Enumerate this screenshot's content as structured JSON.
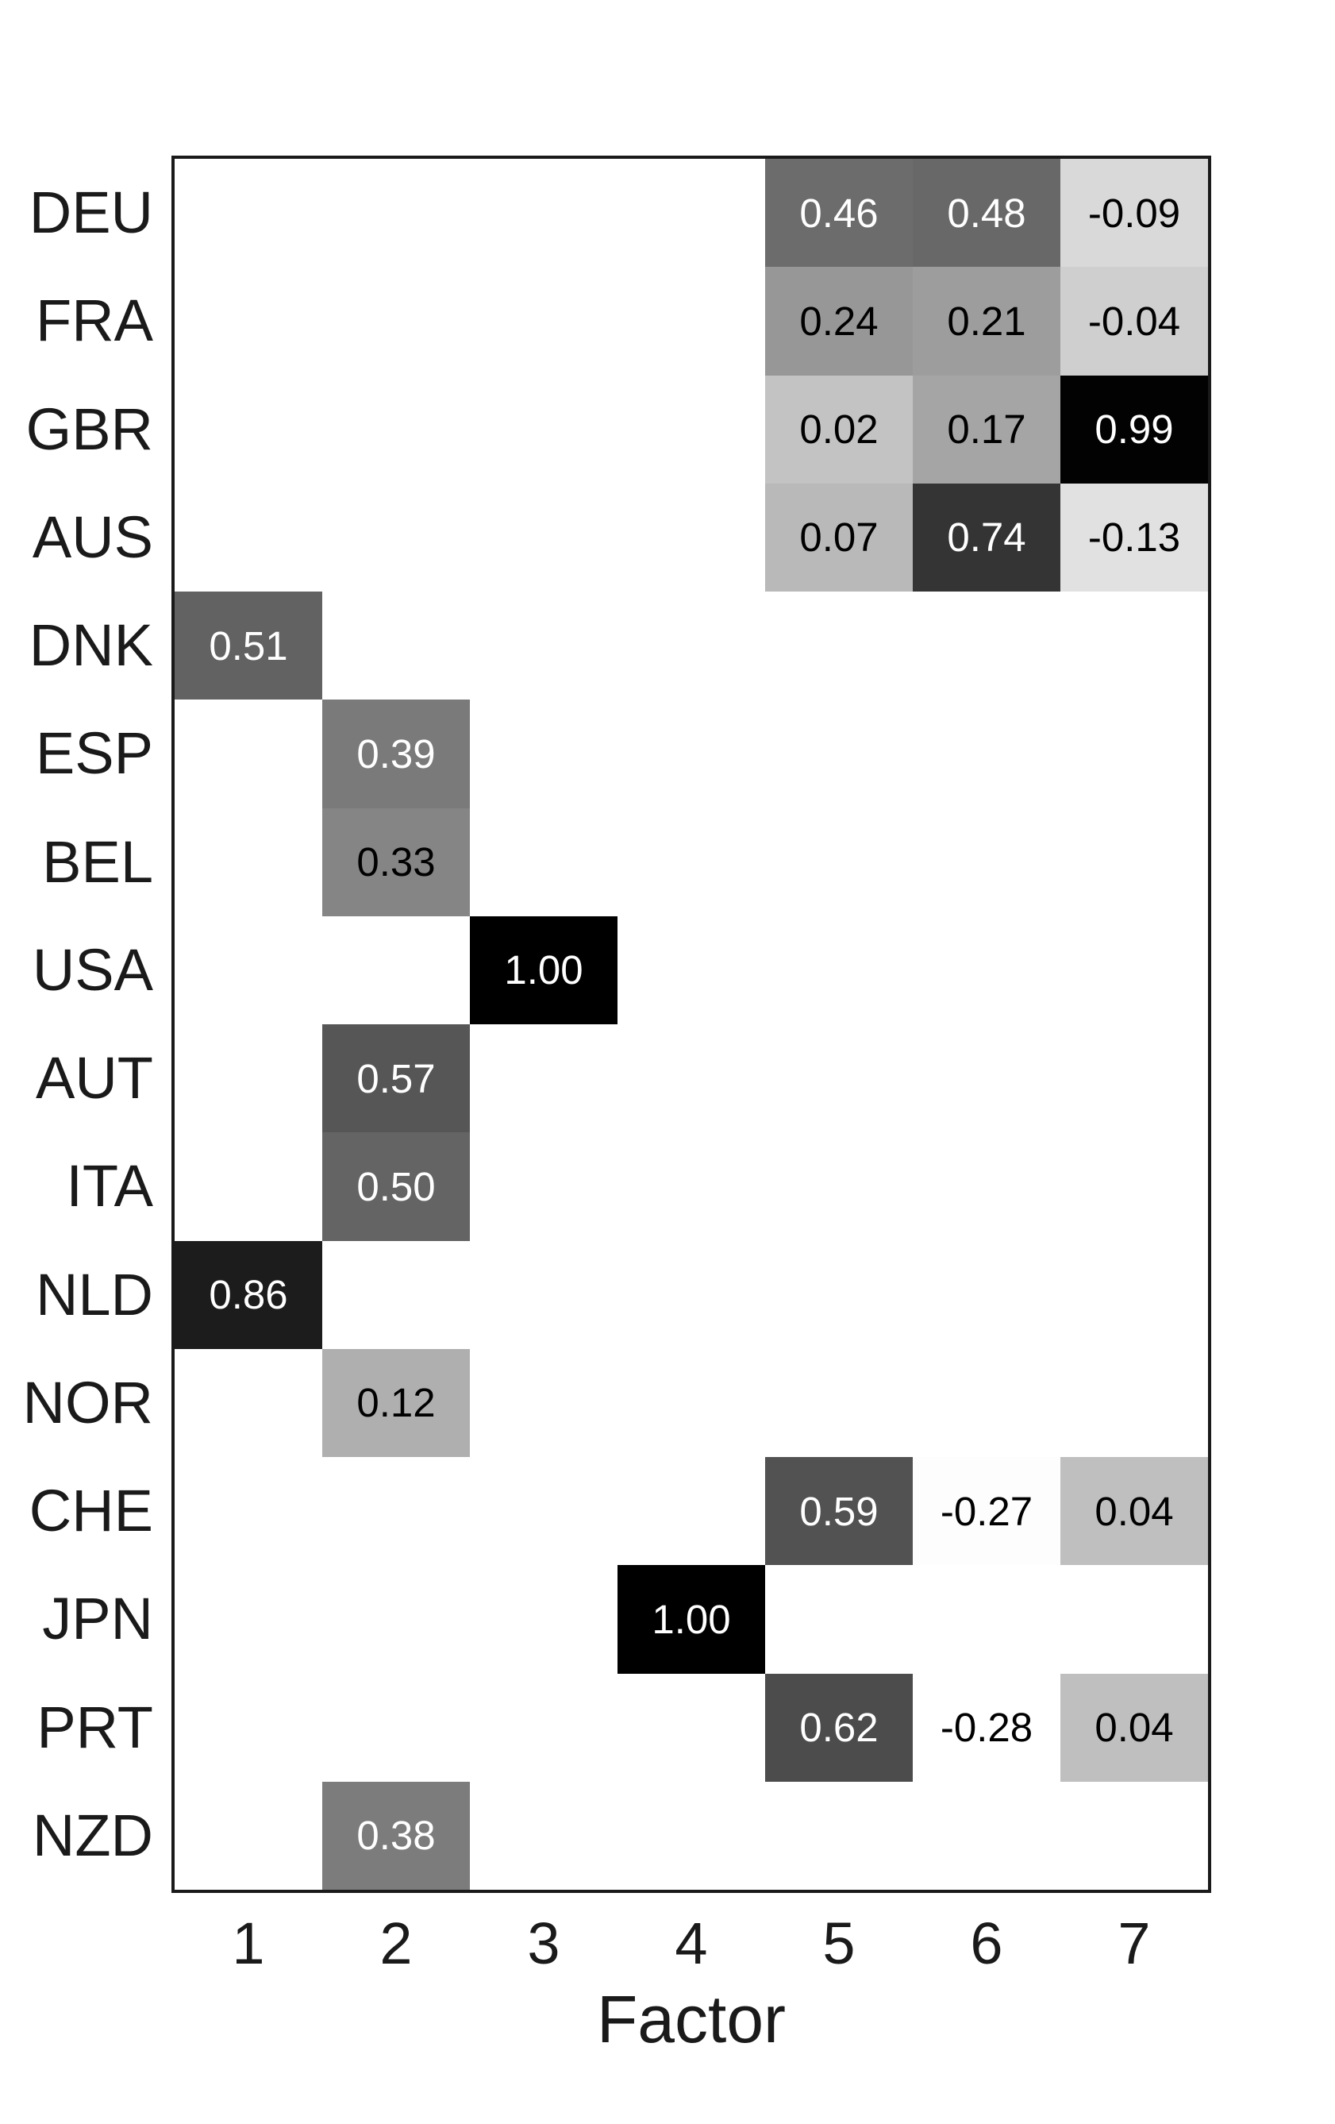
{
  "colors": {
    "background": "#ffffff",
    "text": "#1a1a1a",
    "axis_border": "#1a1a1a",
    "cell_text_light": "#ffffff",
    "cell_text_dark": "#000000"
  },
  "chart_data": {
    "type": "heatmap",
    "title": "",
    "xlabel": "Factor",
    "ylabel": "",
    "x_categories": [
      "1",
      "2",
      "3",
      "4",
      "5",
      "6",
      "7"
    ],
    "y_categories": [
      "DEU",
      "FRA",
      "GBR",
      "AUS",
      "DNK",
      "ESP",
      "BEL",
      "USA",
      "AUT",
      "ITA",
      "NLD",
      "NOR",
      "CHE",
      "JPN",
      "PRT",
      "NZD"
    ],
    "value_decimals": 2,
    "grid": false,
    "legend": "none",
    "color_scale": {
      "type": "linear-grayscale",
      "vmin": -0.28,
      "vmax": 1.0,
      "vmin_color": "#ffffff",
      "vmax_color": "#000000",
      "label_text_flip_gray": 128
    },
    "cells": [
      {
        "row": "DEU",
        "factor": 5,
        "value": 0.46
      },
      {
        "row": "DEU",
        "factor": 6,
        "value": 0.48
      },
      {
        "row": "DEU",
        "factor": 7,
        "value": -0.09
      },
      {
        "row": "FRA",
        "factor": 5,
        "value": 0.24
      },
      {
        "row": "FRA",
        "factor": 6,
        "value": 0.21
      },
      {
        "row": "FRA",
        "factor": 7,
        "value": -0.04
      },
      {
        "row": "GBR",
        "factor": 5,
        "value": 0.02
      },
      {
        "row": "GBR",
        "factor": 6,
        "value": 0.17
      },
      {
        "row": "GBR",
        "factor": 7,
        "value": 0.99
      },
      {
        "row": "AUS",
        "factor": 5,
        "value": 0.07
      },
      {
        "row": "AUS",
        "factor": 6,
        "value": 0.74
      },
      {
        "row": "AUS",
        "factor": 7,
        "value": -0.13
      },
      {
        "row": "DNK",
        "factor": 1,
        "value": 0.51
      },
      {
        "row": "ESP",
        "factor": 2,
        "value": 0.39
      },
      {
        "row": "BEL",
        "factor": 2,
        "value": 0.33
      },
      {
        "row": "USA",
        "factor": 3,
        "value": 1.0
      },
      {
        "row": "AUT",
        "factor": 2,
        "value": 0.57
      },
      {
        "row": "ITA",
        "factor": 2,
        "value": 0.5
      },
      {
        "row": "NLD",
        "factor": 1,
        "value": 0.86
      },
      {
        "row": "NOR",
        "factor": 2,
        "value": 0.12
      },
      {
        "row": "CHE",
        "factor": 5,
        "value": 0.59
      },
      {
        "row": "CHE",
        "factor": 6,
        "value": -0.27
      },
      {
        "row": "CHE",
        "factor": 7,
        "value": 0.04
      },
      {
        "row": "JPN",
        "factor": 4,
        "value": 1.0
      },
      {
        "row": "PRT",
        "factor": 5,
        "value": 0.62
      },
      {
        "row": "PRT",
        "factor": 6,
        "value": -0.28
      },
      {
        "row": "PRT",
        "factor": 7,
        "value": 0.04
      },
      {
        "row": "NZD",
        "factor": 2,
        "value": 0.38
      }
    ]
  }
}
